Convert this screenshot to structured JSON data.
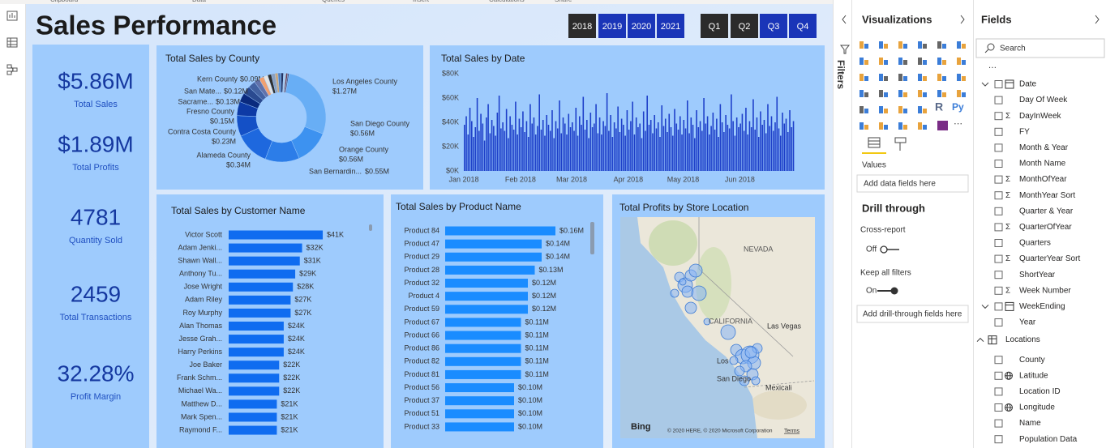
{
  "ribbon": {
    "groups": [
      "Clipboard",
      "Data",
      "Queries",
      "Insert",
      "Calculations",
      "Share"
    ]
  },
  "report": {
    "title": "Sales Performance",
    "year_slicer": {
      "items": [
        "2018",
        "2019",
        "2020",
        "2021"
      ],
      "selected": [
        false,
        true,
        true,
        true
      ]
    },
    "quarter_slicer": {
      "items": [
        "Q1",
        "Q2",
        "Q3",
        "Q4"
      ],
      "selected": [
        false,
        false,
        true,
        true
      ]
    },
    "slicer_colors": {
      "selected": "#1a35b8",
      "unselected": "#2b2b2b"
    },
    "kpis": [
      {
        "value": "$5.86M",
        "label": "Total Sales"
      },
      {
        "value": "$1.89M",
        "label": "Total Profits"
      },
      {
        "value": "4781",
        "label": "Quantity Sold"
      },
      {
        "value": "2459",
        "label": "Total Transactions"
      },
      {
        "value": "32.28%",
        "label": "Profit Margin"
      }
    ],
    "charts": [
      {
        "type": "pie",
        "donut": true,
        "title": "Total Sales by County",
        "categories": [
          "Los Angeles County",
          "San Diego County",
          "Orange County",
          "San Bernardin...",
          "Alameda County",
          "Contra Costa County",
          "Fresno County",
          "Sacrame...",
          "San Mate...",
          "Kern County",
          null,
          null,
          null,
          null,
          null,
          null,
          null,
          null,
          null,
          null
        ],
        "values": [
          1.27,
          0.56,
          0.56,
          0.55,
          0.34,
          0.23,
          0.15,
          0.13,
          0.12,
          0.09,
          0.08,
          0.07,
          0.06,
          0.06,
          0.05,
          0.05,
          0.04,
          0.04,
          0.03,
          0.02
        ],
        "value_labels": [
          "$1.27M",
          "$0.56M",
          "$0.56M",
          "$0.55M",
          "$0.34M",
          "$0.23M",
          "$0.15M",
          "$0.13M",
          "$0.12M",
          "$0.09M",
          null,
          null,
          null,
          null,
          null,
          null,
          null,
          null,
          null,
          null
        ],
        "colors": [
          "#68aef5",
          "#3d92f0",
          "#2c7de8",
          "#1e68de",
          "#1450c6",
          "#0d3aa6",
          "#0a2a7e",
          "#2a4a90",
          "#4362a2",
          "#6272aa",
          "#f0a070",
          "#e4e4e4",
          "#303030",
          "#8aa0c0",
          "#c8a880",
          "#5080c0",
          "#203060",
          "#a8c8ea",
          "#704050",
          "#405080"
        ]
      },
      {
        "type": "bar",
        "title": "Total Sales by Date",
        "color": "#1d3fc9",
        "values": [
          38000,
          45000,
          30000,
          52000,
          41000,
          28000,
          36000,
          60000,
          33000,
          47000,
          39000,
          25000,
          44000,
          55000,
          31000,
          42000,
          37000,
          29000,
          48000,
          62000,
          35000,
          40000,
          33000,
          51000,
          27000,
          45000,
          38000,
          34000,
          57000,
          30000,
          43000,
          36000,
          49000,
          32000,
          41000,
          28000,
          55000,
          39000,
          44000,
          30000,
          37000,
          63000,
          34000,
          42000,
          29000,
          46000,
          38000,
          33000,
          50000,
          27000,
          41000,
          35000,
          58000,
          31000,
          44000,
          39000,
          30000,
          47000,
          36000,
          40000,
          33000,
          52000,
          29000,
          45000,
          38000,
          61000,
          34000,
          42000,
          27000,
          48000,
          36000,
          39000,
          55000,
          31000,
          44000,
          30000,
          41000,
          37000,
          64000,
          33000,
          46000,
          28000,
          40000,
          35000,
          53000,
          32000,
          43000,
          38000,
          29000,
          50000,
          34000,
          41000,
          57000,
          30000,
          44000,
          36000,
          39000,
          27000,
          49000,
          33000,
          62000,
          38000,
          42000,
          31000,
          46000,
          35000,
          40000,
          28000,
          54000,
          37000,
          43000,
          32000,
          47000,
          36000,
          29000,
          51000,
          39000,
          34000,
          45000,
          30000,
          42000,
          35000,
          58000,
          31000,
          44000,
          38000,
          27000,
          50000,
          36000,
          41000,
          33000,
          60000,
          39000,
          45000,
          30000,
          37000,
          48000,
          34000,
          43000,
          28000,
          55000,
          40000,
          32000,
          46000,
          38000,
          35000,
          63000,
          41000,
          29000,
          44000,
          36000,
          39000,
          47000,
          33000,
          52000,
          30000,
          41000,
          36000,
          59000,
          34000,
          44000,
          28000,
          49000,
          38000,
          42000,
          31000,
          55000,
          37000,
          45000,
          33000,
          40000,
          61000,
          35000,
          29000,
          48000,
          39000,
          43000,
          32000,
          50000,
          36000,
          41000
        ],
        "ylim": [
          0,
          80000
        ],
        "yticks": [
          {
            "value": 0,
            "label": "$0K"
          },
          {
            "value": 20000,
            "label": "$20K"
          },
          {
            "value": 40000,
            "label": "$40K"
          },
          {
            "value": 60000,
            "label": "$60K"
          },
          {
            "value": 80000,
            "label": "$80K"
          }
        ],
        "xlim": [
          0,
          181
        ],
        "xticks": [
          {
            "value": 0,
            "label": "Jan 2018"
          },
          {
            "value": 31,
            "label": "Feb 2018"
          },
          {
            "value": 59,
            "label": "Mar 2018"
          },
          {
            "value": 90,
            "label": "Apr 2018"
          },
          {
            "value": 120,
            "label": "May 2018"
          },
          {
            "value": 151,
            "label": "Jun 2018"
          }
        ]
      },
      {
        "type": "bar",
        "orientation": "horizontal",
        "title": "Total Sales by Customer Name",
        "color": "#0f6cf0",
        "categories": [
          "Victor Scott",
          "Adam Jenki...",
          "Shawn Wall...",
          "Anthony Tu...",
          "Jose Wright",
          "Adam Riley",
          "Roy Murphy",
          "Alan Thomas",
          "Jesse Grah...",
          "Harry Perkins",
          "Joe Baker",
          "Frank Schm...",
          "Michael Wa...",
          "Matthew D...",
          "Mark Spen...",
          "Raymond F..."
        ],
        "values": [
          41,
          32,
          31,
          29,
          28,
          27,
          27,
          24,
          24,
          24,
          22,
          22,
          22,
          21,
          21,
          21
        ],
        "value_labels": [
          "$41K",
          "$32K",
          "$31K",
          "$29K",
          "$28K",
          "$27K",
          "$27K",
          "$24K",
          "$24K",
          "$24K",
          "$22K",
          "$22K",
          "$22K",
          "$21K",
          "$21K",
          "$21K"
        ]
      },
      {
        "type": "bar",
        "orientation": "horizontal",
        "title": "Total Sales by Product Name",
        "color": "#1a8cff",
        "categories": [
          "Product 84",
          "Product 47",
          "Product 29",
          "Product 28",
          "Product 32",
          "Product 4",
          "Product 59",
          "Product 67",
          "Product 66",
          "Product 86",
          "Product 82",
          "Product 81",
          "Product 56",
          "Product 37",
          "Product 51",
          "Product 33"
        ],
        "values": [
          0.16,
          0.14,
          0.14,
          0.13,
          0.12,
          0.12,
          0.12,
          0.11,
          0.11,
          0.11,
          0.11,
          0.11,
          0.1,
          0.1,
          0.1,
          0.1
        ],
        "value_labels": [
          "$0.16M",
          "$0.14M",
          "$0.14M",
          "$0.13M",
          "$0.12M",
          "$0.12M",
          "$0.12M",
          "$0.11M",
          "$0.11M",
          "$0.11M",
          "$0.11M",
          "$0.11M",
          "$0.10M",
          "$0.10M",
          "$0.10M",
          "$0.10M"
        ]
      },
      {
        "type": "map",
        "title": "Total Profits by Store Location",
        "place_labels": [
          "NEVADA",
          "CALIFORNIA",
          "Las Vegas",
          "Los",
          "San Diego",
          "Mexicali"
        ],
        "attribution": "Bing",
        "copyright": "© 2020 HERE, © 2020 Microsoft Corporation",
        "terms": "Terms"
      }
    ]
  },
  "filters_pane": {
    "title": "Filters"
  },
  "visualizations": {
    "title": "Visualizations",
    "icon_labels": [
      "R",
      "Py",
      "⋯"
    ],
    "values_label": "Values",
    "values_placeholder": "Add data fields here",
    "drill_title": "Drill through",
    "cross_report": "Cross-report",
    "cross_report_state": "Off",
    "cross_report_on": false,
    "keep_filters": "Keep all filters",
    "keep_filters_state": "On",
    "keep_filters_on": true,
    "drill_placeholder": "Add drill-through fields here"
  },
  "fields": {
    "title": "Fields",
    "search_placeholder": "Search",
    "more": "⋯",
    "items": [
      {
        "name": "Date",
        "kind": "hierarchy"
      },
      {
        "name": "Day Of Week"
      },
      {
        "name": "DayInWeek",
        "prefix": "Σ"
      },
      {
        "name": "FY"
      },
      {
        "name": "Month & Year"
      },
      {
        "name": "Month Name"
      },
      {
        "name": "MonthOfYear",
        "prefix": "Σ"
      },
      {
        "name": "MonthYear Sort",
        "prefix": "Σ"
      },
      {
        "name": "Quarter & Year"
      },
      {
        "name": "QuarterOfYear",
        "prefix": "Σ"
      },
      {
        "name": "Quarters"
      },
      {
        "name": "QuarterYear Sort",
        "prefix": "Σ"
      },
      {
        "name": "ShortYear"
      },
      {
        "name": "Week Number",
        "prefix": "Σ"
      },
      {
        "name": "WeekEnding",
        "kind": "hierarchy"
      },
      {
        "name": "Year"
      },
      {
        "name": "Locations",
        "kind": "table"
      },
      {
        "name": "County"
      },
      {
        "name": "Latitude",
        "kind": "geo"
      },
      {
        "name": "Location ID"
      },
      {
        "name": "Longitude",
        "kind": "geo"
      },
      {
        "name": "Name"
      },
      {
        "name": "Population Data"
      }
    ]
  }
}
